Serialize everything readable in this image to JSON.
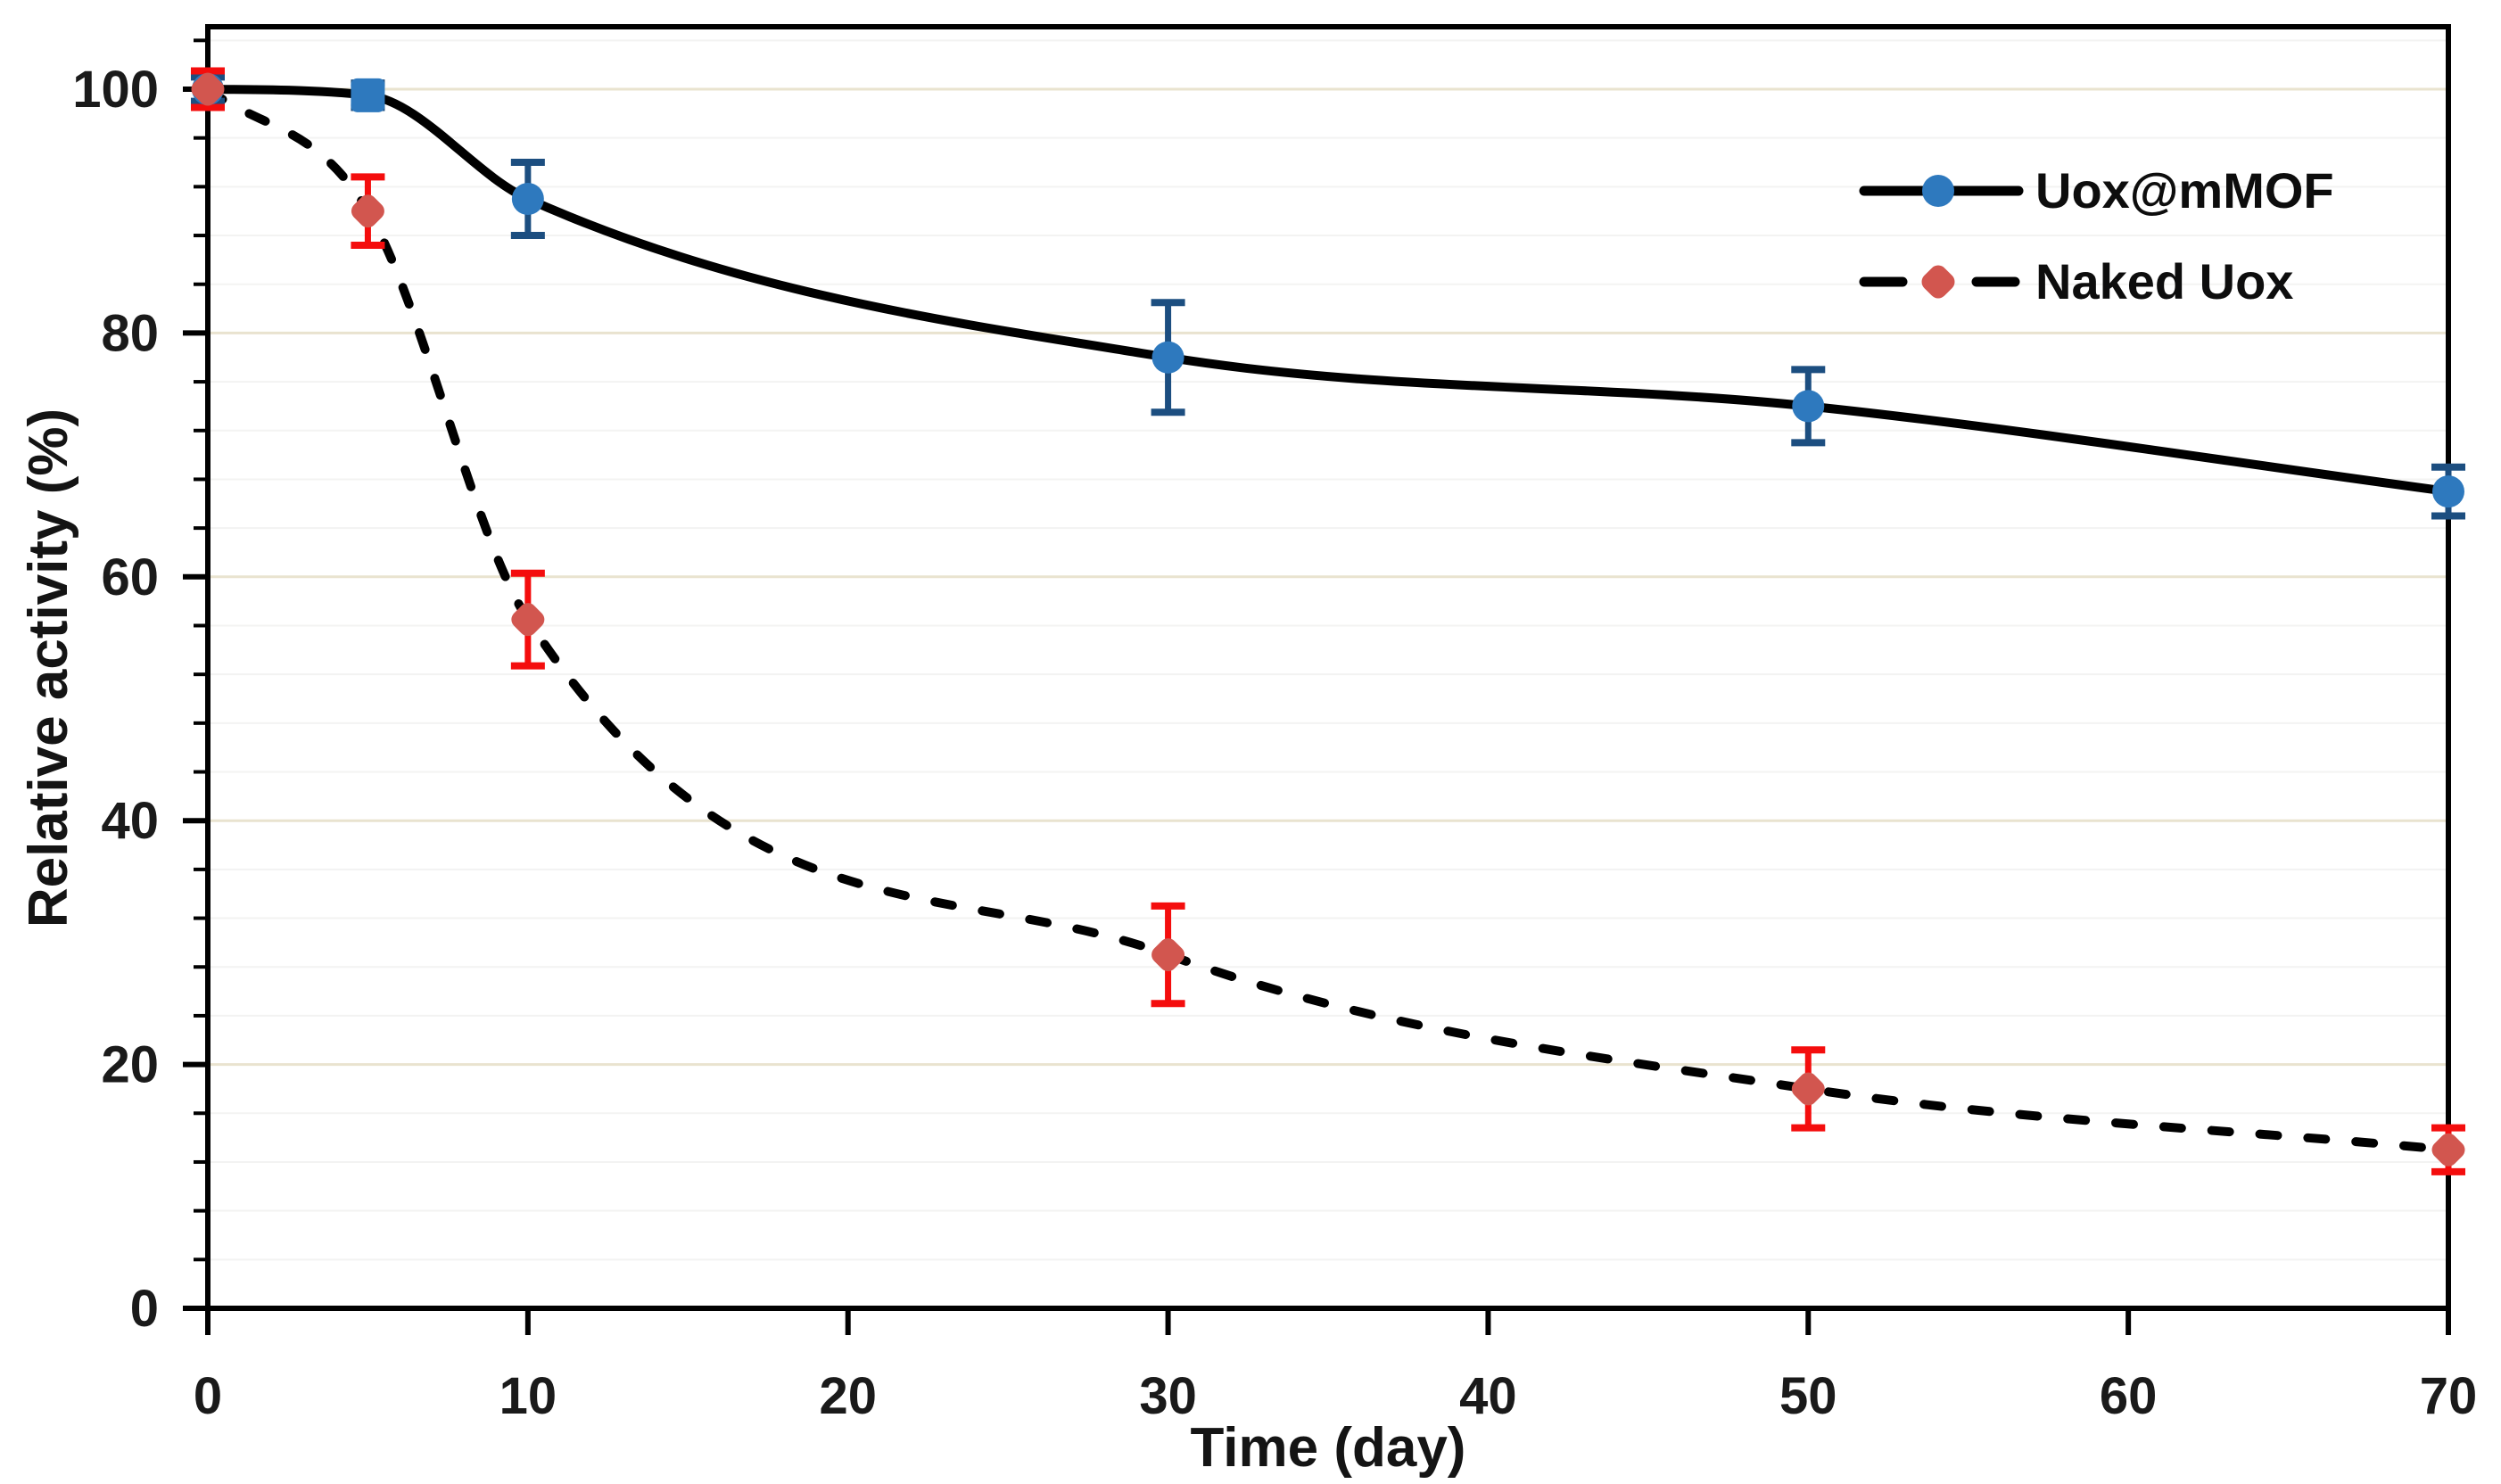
{
  "figure": {
    "background_color": "#FFFFFF",
    "plot_border_color": "#000000",
    "text_color": "#141414"
  },
  "chart_data": {
    "type": "line",
    "title": "",
    "xlabel": "Time (day)",
    "ylabel": "Relative activity (%)",
    "xlim": [
      0,
      70
    ],
    "ylim": [
      0,
      105
    ],
    "x_major_unit": 10,
    "y_major_unit": 20,
    "y_minor_unit": 4,
    "y_minor_max": 104,
    "x_tick_labels": [
      "0",
      "10",
      "20",
      "30",
      "40",
      "50",
      "60",
      "70"
    ],
    "x_tick_values": [
      0,
      10,
      20,
      30,
      40,
      50,
      60,
      70
    ],
    "y_tick_labels": [
      "0",
      "20",
      "40",
      "60",
      "80",
      "100"
    ],
    "y_tick_values": [
      0,
      20,
      40,
      60,
      80,
      100
    ],
    "grid": {
      "vertical": false,
      "major_color": "#E9E3CF",
      "minor_color": "#F3F3F2"
    },
    "legend": {
      "position": "upper-right-inside",
      "items": [
        "Uox@mMOF",
        "Naked Uox"
      ]
    },
    "series": [
      {
        "name": "Uox@mMOF",
        "line_style": "solid",
        "line_color": "#000000",
        "marker": "circle",
        "marker_color": "#2E79BE",
        "error_bar_color": "#1C4E80",
        "x": [
          0,
          5,
          10,
          30,
          50,
          70
        ],
        "y": [
          100,
          99.5,
          91,
          78,
          74,
          67
        ],
        "yerr": [
          1,
          1,
          3,
          4.5,
          3,
          2
        ],
        "marker_shapes": [
          "circle",
          "square",
          "circle",
          "circle",
          "circle",
          "circle"
        ]
      },
      {
        "name": "Naked Uox",
        "line_style": "dashed",
        "line_color": "#000000",
        "marker": "diamond",
        "marker_color": "#D2564F",
        "error_bar_color": "#F40D0D",
        "x": [
          0,
          5,
          10,
          30,
          50,
          70
        ],
        "y": [
          100,
          90,
          56.5,
          29,
          18,
          13
        ],
        "yerr": [
          1.5,
          2.8,
          3.8,
          4,
          3.2,
          1.8
        ],
        "marker_shapes": [
          "diamond",
          "diamond",
          "diamond",
          "diamond",
          "diamond",
          "diamond"
        ]
      }
    ]
  }
}
